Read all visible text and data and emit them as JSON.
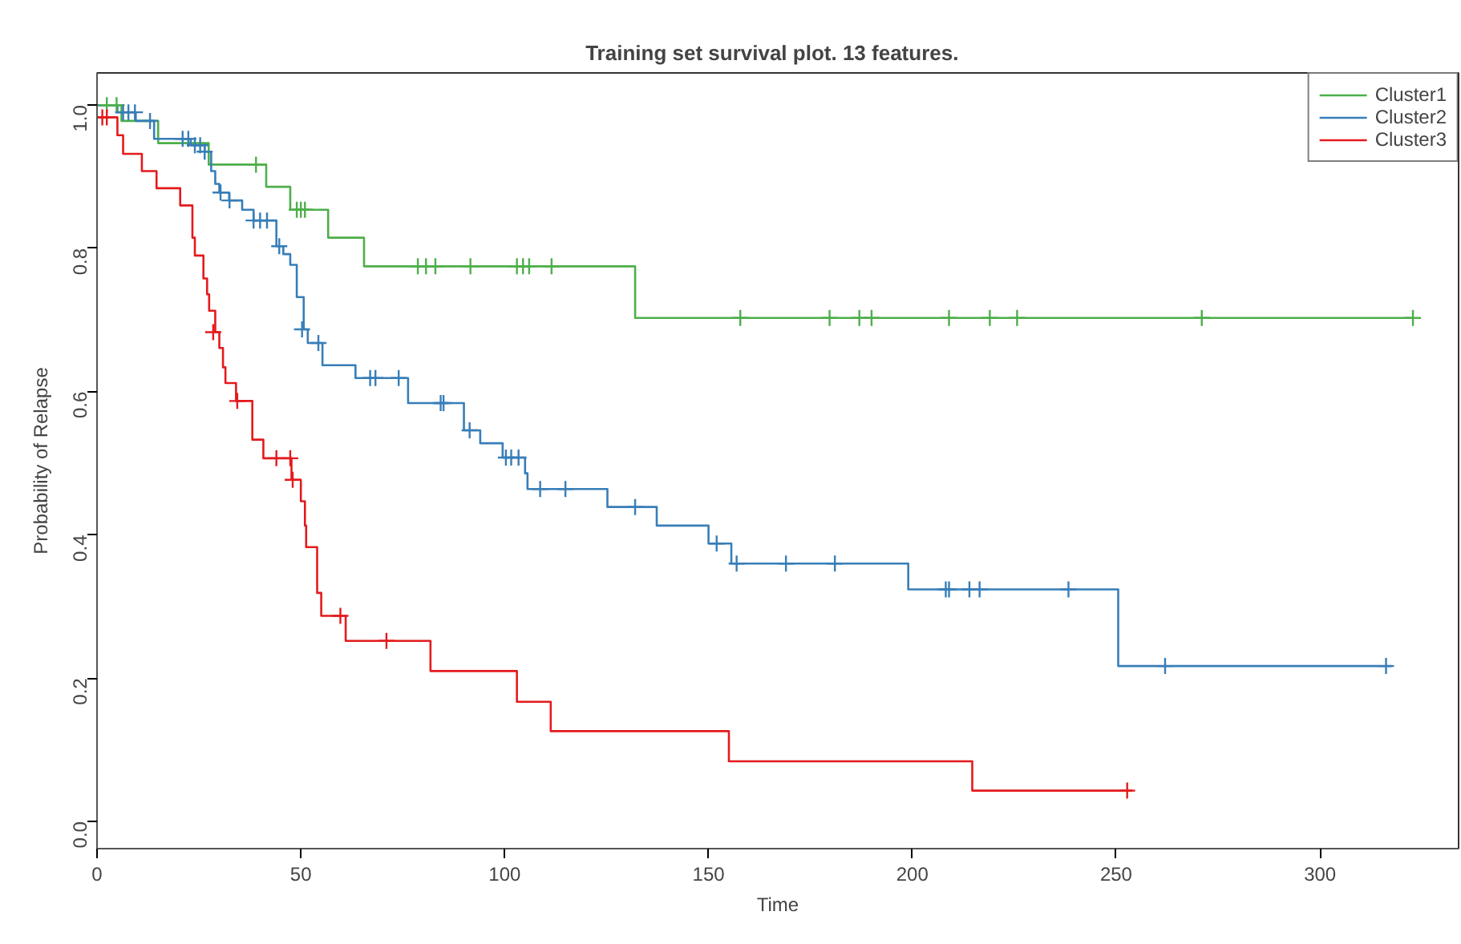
{
  "chart_data": {
    "type": "step",
    "title": "Training set survival plot.  13  features.",
    "xlabel": "Time",
    "ylabel": "Probability of Relapse",
    "xlim": [
      0,
      334
    ],
    "ylim": [
      -0.038,
      1.045
    ],
    "xticks": [
      0,
      50,
      100,
      150,
      200,
      250,
      300
    ],
    "yticks": [
      {
        "value": 0,
        "label": "0.0"
      },
      {
        "value": 0.2,
        "label": "0.2"
      },
      {
        "value": 0.4,
        "label": "0.4"
      },
      {
        "value": 0.6,
        "label": "0.6"
      },
      {
        "value": 0.8,
        "label": "0.8"
      },
      {
        "value": 1,
        "label": "1.0"
      }
    ],
    "grid": false,
    "legend": "top right",
    "series": [
      {
        "name": "Cluster1",
        "color": "#4daf4a",
        "x": [
          0,
          6,
          15,
          27.4,
          41.5,
          47.4,
          56.7,
          65.5,
          132,
          323
        ],
        "values": [
          1.0,
          0.978,
          0.947,
          0.917,
          0.886,
          0.854,
          0.815,
          0.775,
          0.703,
          0.703
        ]
      },
      {
        "name": "Cluster2",
        "color": "#377eb8",
        "x": [
          0,
          5,
          9.5,
          14,
          23,
          26.4,
          28,
          29,
          30,
          32.4,
          35.6,
          38.4,
          44,
          45.7,
          47.4,
          49,
          50.7,
          51.7,
          55.3,
          63.4,
          76.3,
          90,
          94,
          99.5,
          105,
          105.6,
          125.2,
          137.3,
          150,
          155.6,
          199,
          250.5,
          317.6
        ],
        "values": [
          1.0,
          0.99,
          0.978,
          0.953,
          0.944,
          0.935,
          0.908,
          0.89,
          0.878,
          0.867,
          0.854,
          0.839,
          0.803,
          0.792,
          0.777,
          0.732,
          0.687,
          0.668,
          0.637,
          0.619,
          0.584,
          0.546,
          0.528,
          0.508,
          0.486,
          0.464,
          0.439,
          0.413,
          0.388,
          0.36,
          0.324,
          0.217,
          0.217
        ]
      },
      {
        "name": "Cluster3",
        "color": "#e41a1c",
        "x": [
          0,
          5,
          6.4,
          11,
          14.6,
          20.4,
          23.4,
          24,
          26.1,
          27,
          27.5,
          29,
          30,
          30.9,
          31.5,
          34.1,
          38.1,
          40.8,
          47.7,
          50,
          51,
          51.3,
          54,
          55,
          61,
          81.8,
          103,
          111.3,
          155,
          214.7,
          254
        ],
        "values": [
          0.983,
          0.958,
          0.932,
          0.908,
          0.884,
          0.86,
          0.815,
          0.79,
          0.758,
          0.736,
          0.713,
          0.683,
          0.661,
          0.634,
          0.612,
          0.587,
          0.533,
          0.507,
          0.477,
          0.447,
          0.413,
          0.383,
          0.319,
          0.287,
          0.252,
          0.21,
          0.167,
          0.126,
          0.084,
          0.043,
          0.043
        ]
      },
      {
        "type": "scatter",
        "marker": "cross",
        "color": "#4daf4a",
        "x": [
          2.4,
          4.8,
          39,
          49,
          50,
          51,
          78.7,
          80.7,
          83,
          91.6,
          103,
          104.5,
          106,
          111.5,
          157.8,
          179.7,
          187,
          190,
          209,
          219,
          225.7,
          271,
          322.8
        ],
        "values": [
          1.0,
          1.0,
          0.917,
          0.854,
          0.854,
          0.854,
          0.775,
          0.775,
          0.775,
          0.775,
          0.775,
          0.775,
          0.775,
          0.775,
          0.703,
          0.703,
          0.703,
          0.703,
          0.703,
          0.703,
          0.703,
          0.703,
          0.703
        ]
      },
      {
        "type": "scatter",
        "marker": "cross",
        "color": "#377eb8",
        "x": [
          6.4,
          7.7,
          9.3,
          13,
          21,
          22.4,
          24,
          25.3,
          26.4,
          30.3,
          32.5,
          38.4,
          40,
          41.7,
          44.7,
          50.3,
          54.3,
          67,
          68.3,
          74,
          84.3,
          85,
          91.4,
          100.3,
          101.6,
          103.4,
          108.7,
          114.9,
          132,
          152,
          156.9,
          169,
          181,
          208.2,
          209,
          214,
          216.5,
          238.3,
          262,
          316.2
        ],
        "values": [
          0.99,
          0.99,
          0.99,
          0.978,
          0.953,
          0.953,
          0.944,
          0.944,
          0.935,
          0.878,
          0.867,
          0.839,
          0.839,
          0.839,
          0.803,
          0.687,
          0.668,
          0.619,
          0.619,
          0.619,
          0.584,
          0.584,
          0.546,
          0.508,
          0.508,
          0.508,
          0.464,
          0.464,
          0.439,
          0.388,
          0.36,
          0.36,
          0.36,
          0.324,
          0.324,
          0.324,
          0.324,
          0.324,
          0.217,
          0.217
        ]
      },
      {
        "type": "scatter",
        "marker": "cross",
        "color": "#e41a1c",
        "x": [
          1.3,
          2.4,
          28.5,
          34.4,
          44,
          47.4,
          48,
          59.7,
          71,
          252.7
        ],
        "values": [
          0.983,
          0.983,
          0.683,
          0.587,
          0.507,
          0.507,
          0.477,
          0.287,
          0.252,
          0.043
        ]
      }
    ]
  }
}
